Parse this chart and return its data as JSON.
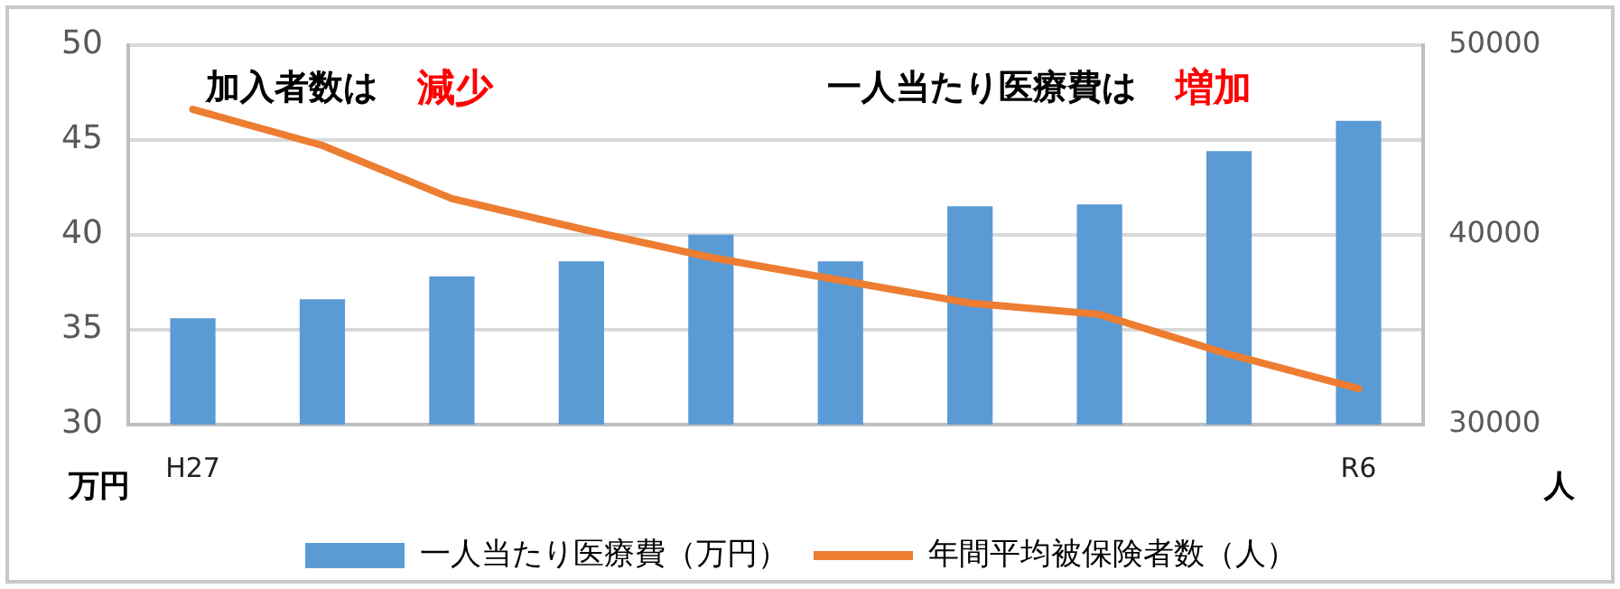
{
  "chart_data": {
    "type": "bar",
    "categories": [
      "H27",
      null,
      null,
      null,
      null,
      null,
      null,
      null,
      null,
      "R6"
    ],
    "series": [
      {
        "name": "一人当たり医療費（万円）",
        "color": "#5b9bd5",
        "values": [
          35.6,
          36.6,
          37.8,
          38.6,
          40.0,
          38.6,
          41.5,
          41.6,
          44.4,
          46.0
        ]
      },
      {
        "name": "年間平均被保険者数（人）",
        "type": "line",
        "axis": "y2",
        "color": "#ed7d31",
        "values": [
          46600,
          44700,
          41900,
          40300,
          38800,
          37600,
          36400,
          35800,
          33700,
          31900
        ]
      }
    ],
    "ylabel": "万円",
    "y2label": "人",
    "ylim": [
      30,
      50
    ],
    "yticks": [
      30,
      35,
      40,
      45,
      50
    ],
    "y2lim": [
      30000,
      50000
    ],
    "y2ticks": [
      30000,
      {
        "value": 35000,
        "label": null
      },
      40000,
      {
        "value": 45000,
        "label": null
      },
      50000
    ],
    "annotations": [
      "加入者数は",
      "減少",
      "一人当たり医療費は",
      "増加"
    ],
    "grid": "y",
    "legend": "bottom",
    "marker": "none"
  }
}
